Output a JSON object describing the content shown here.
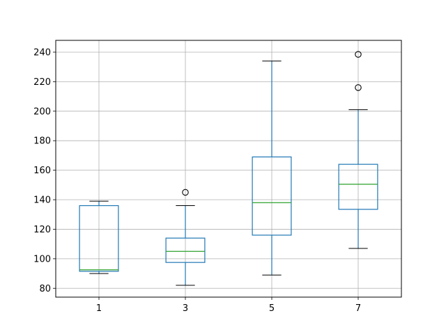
{
  "chart_data": {
    "type": "box",
    "title": "",
    "xlabel": "",
    "ylabel": "",
    "categories": [
      "1",
      "3",
      "5",
      "7"
    ],
    "ylim": [
      74,
      248
    ],
    "yticks": [
      80,
      100,
      120,
      140,
      160,
      180,
      200,
      220,
      240
    ],
    "yticklabels": [
      "80",
      "100",
      "120",
      "140",
      "160",
      "180",
      "200",
      "220",
      "240"
    ],
    "grid": true,
    "boxes": [
      {
        "category": "1",
        "whisker_low": 90,
        "q1": 91.5,
        "median": 92.5,
        "q3": 136,
        "whisker_high": 139,
        "outliers": []
      },
      {
        "category": "3",
        "whisker_low": 82,
        "q1": 97.5,
        "median": 105,
        "q3": 114,
        "whisker_high": 136,
        "outliers": [
          145
        ]
      },
      {
        "category": "5",
        "whisker_low": 89,
        "q1": 116,
        "median": 138,
        "q3": 169,
        "whisker_high": 234,
        "outliers": []
      },
      {
        "category": "7",
        "whisker_low": 107,
        "q1": 133.5,
        "median": 150.5,
        "q3": 164,
        "whisker_high": 201,
        "outliers": [
          216,
          238.5
        ]
      }
    ],
    "colors": {
      "box": "#1f77b4",
      "median": "#2ca02c",
      "whisker_cap": "#000000",
      "grid": "#b0b0b0",
      "outlier_edge": "#000000"
    }
  }
}
